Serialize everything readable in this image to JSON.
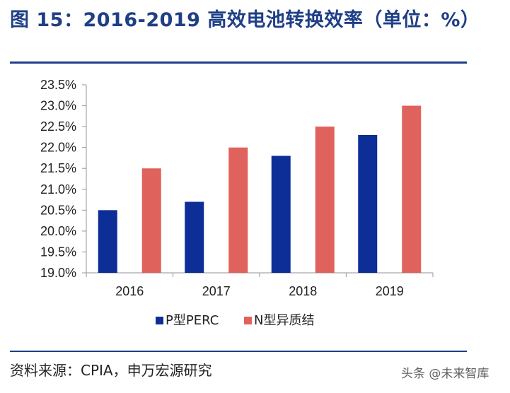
{
  "header": {
    "title": "图 15：2016-2019 高效电池转换效率（单位：%）"
  },
  "footer": {
    "source": "资料来源：CPIA，申万宏源研究",
    "watermark": "头条 @未来智库"
  },
  "colors": {
    "accent": "#1f3f86",
    "p_perc": "#0d2d97",
    "n_hetero": "#e0625c",
    "axis": "#a6a6a6"
  },
  "chart_data": {
    "type": "bar",
    "title": "2016-2019 高效电池转换效率（单位：%）",
    "xlabel": "",
    "ylabel": "",
    "categories": [
      "2016",
      "2017",
      "2018",
      "2019"
    ],
    "ylim": [
      19.0,
      23.5
    ],
    "yticks": [
      19.0,
      19.5,
      20.0,
      20.5,
      21.0,
      21.5,
      22.0,
      22.5,
      23.0,
      23.5
    ],
    "ytick_labels": [
      "19.0%",
      "19.5%",
      "20.0%",
      "20.5%",
      "21.0%",
      "21.5%",
      "22.0%",
      "22.5%",
      "23.0%",
      "23.5%"
    ],
    "grid": false,
    "legend_position": "bottom",
    "series": [
      {
        "name": "P型PERC",
        "color": "#0d2d97",
        "values": [
          20.5,
          20.7,
          21.8,
          22.3
        ]
      },
      {
        "name": "N型异质结",
        "color": "#e0625c",
        "values": [
          21.5,
          22.0,
          22.5,
          23.0
        ]
      }
    ]
  }
}
